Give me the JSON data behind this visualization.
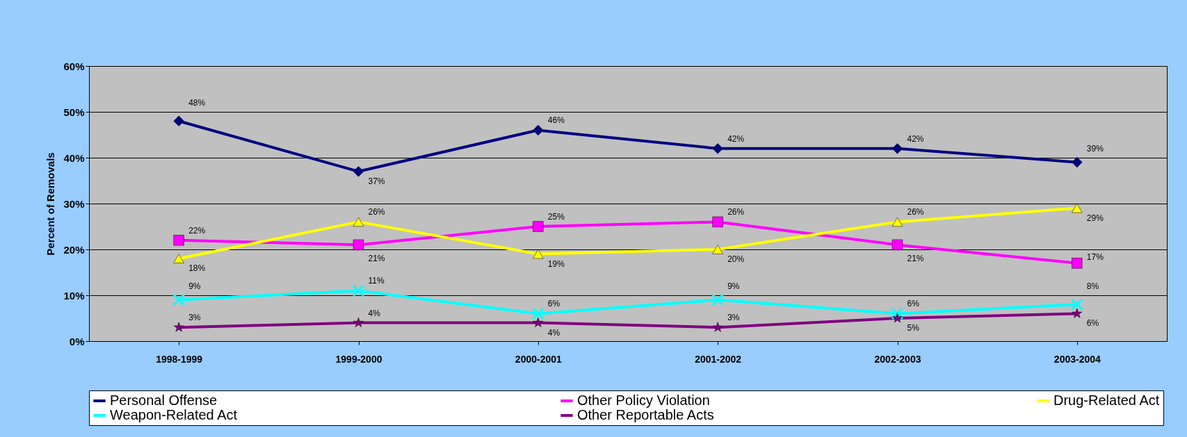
{
  "chart_data": {
    "type": "line",
    "ylabel": "Percent of Removals",
    "categories": [
      "1998-1999",
      "1999-2000",
      "2000-2001",
      "2001-2002",
      "2002-2003",
      "2003-2004"
    ],
    "ylim": [
      0,
      60
    ],
    "yticks": [
      {
        "value": 0,
        "label": "0%"
      },
      {
        "value": 10,
        "label": "10%"
      },
      {
        "value": 20,
        "label": "20%"
      },
      {
        "value": 30,
        "label": "30%"
      },
      {
        "value": 40,
        "label": "40%"
      },
      {
        "value": 50,
        "label": "50%"
      },
      {
        "value": 60,
        "label": "60%"
      }
    ],
    "grid": "y",
    "legend": "bottom",
    "series": [
      {
        "name": "Personal Offense",
        "color": "#000080",
        "marker": "diamond",
        "values": [
          48,
          37,
          46,
          42,
          42,
          39
        ],
        "value_labels": [
          "48%",
          "37%",
          "46%",
          "42%",
          "42%",
          "39%"
        ]
      },
      {
        "name": "Other Policy Violation",
        "color": "#ff00ff",
        "marker": "square",
        "values": [
          22,
          21,
          25,
          26,
          21,
          17
        ],
        "value_labels": [
          "22%",
          "21%",
          "25%",
          "26%",
          "21%",
          "17%"
        ]
      },
      {
        "name": "Drug-Related Act",
        "color": "#ffff00",
        "marker": "triangle",
        "values": [
          18,
          26,
          19,
          20,
          26,
          29
        ],
        "value_labels": [
          "18%",
          "26%",
          "19%",
          "20%",
          "26%",
          "29%"
        ]
      },
      {
        "name": "Weapon-Related Act",
        "color": "#00ffff",
        "marker": "cross",
        "values": [
          9,
          11,
          6,
          9,
          6,
          8
        ],
        "value_labels": [
          "9%",
          "11%",
          "6%",
          "9%",
          "6%",
          "8%"
        ]
      },
      {
        "name": "Other Reportable Acts",
        "color": "#800080",
        "marker": "star",
        "values": [
          3,
          4,
          4,
          3,
          5,
          6
        ],
        "value_labels": [
          "3%",
          "4%",
          "4%",
          "3%",
          "5%",
          "6%"
        ]
      }
    ]
  }
}
